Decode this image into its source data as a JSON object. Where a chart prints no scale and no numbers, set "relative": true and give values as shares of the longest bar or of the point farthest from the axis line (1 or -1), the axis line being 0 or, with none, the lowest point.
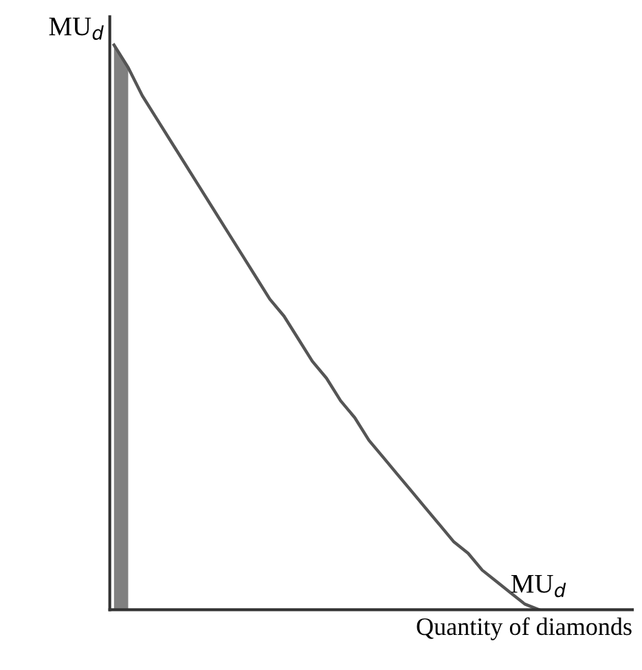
{
  "chart_data": {
    "type": "line",
    "relative": true,
    "xlabel": "Quantity of diamonds",
    "ylabel": "MU$_{d}$",
    "categories": [
      null,
      null,
      null,
      null,
      null,
      null,
      null,
      null,
      null,
      null,
      null,
      null,
      null,
      null,
      null,
      null,
      null,
      null,
      null,
      null,
      null,
      null,
      null,
      null,
      null,
      null,
      null,
      null,
      null,
      null,
      null
    ],
    "series": [
      {
        "type": "area",
        "color": "#808080",
        "values": [
          1.0,
          0.96,
          null,
          null,
          null,
          null,
          null,
          null,
          null,
          null,
          null,
          null,
          null,
          null,
          null,
          null,
          null,
          null,
          null,
          null,
          null,
          null,
          null,
          null,
          null,
          null,
          null,
          null,
          null,
          null,
          null
        ]
      },
      {
        "name": "MU$_{d}$",
        "color": "#555555",
        "values": [
          1.0,
          0.96,
          0.91,
          0.87,
          0.83,
          0.79,
          0.75,
          0.71,
          0.67,
          0.63,
          0.59,
          0.55,
          0.52,
          0.48,
          0.44,
          0.41,
          0.37,
          0.34,
          0.3,
          0.27,
          0.24,
          0.21,
          0.18,
          0.15,
          0.12,
          0.1,
          0.07,
          0.05,
          0.03,
          0.01,
          0.0
        ]
      }
    ],
    "legend": false,
    "marker": "none",
    "line_style": "solid"
  }
}
